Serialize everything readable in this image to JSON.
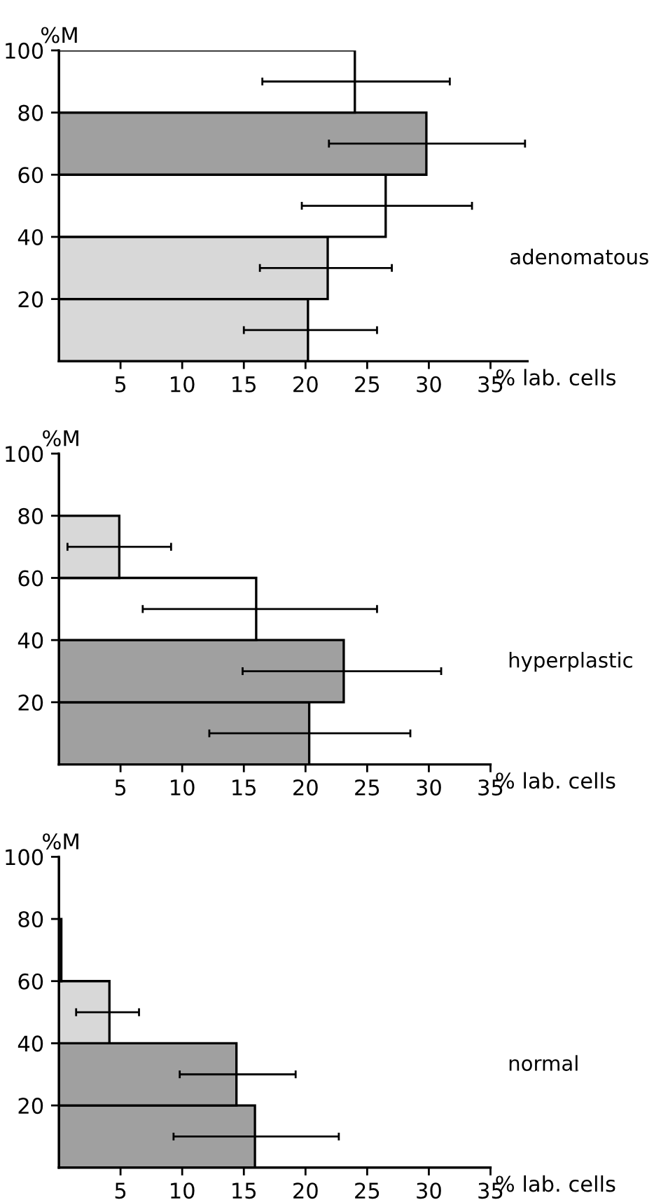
{
  "chart_data": [
    {
      "type": "histogram",
      "orientation": "horizontal",
      "bins": [
        0,
        20,
        40,
        60,
        80,
        100
      ],
      "values": [
        20.2,
        21.8,
        26.5,
        29.8,
        24.0
      ],
      "errors": [
        [
          15.0,
          25.8
        ],
        [
          16.3,
          27.0
        ],
        [
          19.7,
          33.5
        ],
        [
          21.9,
          37.8
        ],
        [
          16.5,
          31.7
        ]
      ],
      "colors": [
        "#d8d8d8",
        "#d8d8d8",
        "#ffffff",
        "#a0a0a0",
        "#ffffff"
      ],
      "xlim": [
        0,
        38
      ],
      "xticks": [
        5,
        10,
        15,
        20,
        25,
        30,
        35
      ],
      "ylim": [
        0,
        100
      ],
      "yticks": [
        20,
        40,
        60,
        80,
        100
      ],
      "xlabel": "% lab. cells",
      "ylabel": "%M",
      "annotations": [
        "adenomatous"
      ]
    },
    {
      "type": "histogram",
      "orientation": "horizontal",
      "bins": [
        0,
        20,
        40,
        60,
        80,
        100
      ],
      "values": [
        20.3,
        23.1,
        16.0,
        4.9,
        0
      ],
      "errors": [
        [
          12.2,
          28.5
        ],
        [
          14.9,
          31.0
        ],
        [
          6.8,
          25.8
        ],
        [
          0.7,
          9.1
        ],
        null
      ],
      "colors": [
        "#a0a0a0",
        "#a0a0a0",
        "#ffffff",
        "#d8d8d8",
        "#ffffff"
      ],
      "xlim": [
        0,
        35
      ],
      "xticks": [
        5,
        10,
        15,
        20,
        25,
        30,
        35
      ],
      "ylim": [
        0,
        100
      ],
      "yticks": [
        20,
        40,
        60,
        80,
        100
      ],
      "xlabel": "% lab. cells",
      "ylabel": "%M",
      "annotations": [
        "hyperplastic"
      ]
    },
    {
      "type": "histogram",
      "orientation": "horizontal",
      "bins": [
        0,
        20,
        40,
        60,
        80,
        100
      ],
      "values": [
        15.9,
        14.4,
        4.1,
        0.2,
        0
      ],
      "errors": [
        [
          9.3,
          22.7
        ],
        [
          9.8,
          19.2
        ],
        [
          1.4,
          6.5
        ],
        null,
        null
      ],
      "colors": [
        "#a0a0a0",
        "#a0a0a0",
        "#d8d8d8",
        "#ffffff",
        "#ffffff"
      ],
      "xlim": [
        0,
        35
      ],
      "xticks": [
        5,
        10,
        15,
        20,
        25,
        30,
        35
      ],
      "ylim": [
        0,
        100
      ],
      "yticks": [
        20,
        40,
        60,
        80,
        100
      ],
      "xlabel": "% lab. cells",
      "ylabel": "%M",
      "annotations": [
        "normal"
      ]
    }
  ]
}
